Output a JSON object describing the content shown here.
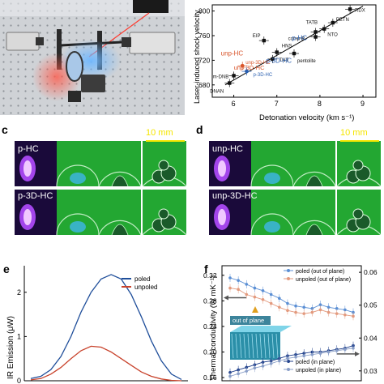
{
  "panel_labels": {
    "c": "c",
    "d": "d",
    "e": "e",
    "f": "f"
  },
  "panel_b": {
    "ylabel": "Laser-induced shock velocity",
    "xlabel": "Detonation velocity (km s⁻¹)",
    "x_ticks": [
      "6",
      "7",
      "8",
      "9"
    ],
    "y_ticks": [
      "680",
      "720",
      "760",
      "800"
    ],
    "labels": {
      "rdx": "RDX",
      "petn": "PETN",
      "tatb": "TATB",
      "nto": "NTO",
      "comp_b": "comp-B",
      "eip": "EIP",
      "hns": "HNS",
      "tnt": "TNT",
      "pentolite": "pentolite",
      "m_dnb": "m-DNB",
      "dnan": "DNAN",
      "p_hc": "p-HC",
      "p_3d_hc": "p-3D-HC",
      "unp_hc": "unp-HC",
      "unp_3d_hc": "unp-3D-HC"
    },
    "colors": {
      "p": "#2a5fb0",
      "unp": "#d9552b",
      "ref": "#111111"
    }
  },
  "chart_data": [
    {
      "type": "scatter",
      "xlabel": "Detonation velocity (km s⁻¹)",
      "ylabel": "Laser-induced shock velocity",
      "xlim": [
        5.5,
        9.3
      ],
      "ylim": [
        660,
        810
      ],
      "series": [
        {
          "values": [
            {
              "x": 5.9,
              "y": 683,
              "label": "DNAN"
            },
            {
              "x": 6.0,
              "y": 695,
              "label": "m-DNB"
            },
            {
              "x": 6.9,
              "y": 722,
              "label": "TNT"
            },
            {
              "x": 7.0,
              "y": 733,
              "label": "HNS"
            },
            {
              "x": 6.7,
              "y": 752,
              "label": "EIP"
            },
            {
              "x": 7.4,
              "y": 731,
              "label": "pentolite"
            },
            {
              "x": 7.9,
              "y": 766,
              "label": "TATB"
            },
            {
              "x": 7.9,
              "y": 758,
              "label": "comp-B"
            },
            {
              "x": 8.1,
              "y": 771,
              "label": "NTO"
            },
            {
              "x": 8.3,
              "y": 781,
              "label": "PETN"
            },
            {
              "x": 8.7,
              "y": 803,
              "label": "RDX"
            },
            {
              "x": 6.3,
              "y": 702,
              "label": "p-3D-HC"
            },
            {
              "x": 6.2,
              "y": 711,
              "label": "unp-3D-HC"
            }
          ]
        }
      ]
    },
    {
      "type": "line",
      "ylabel": "IR Emission (μW)",
      "series": [
        {
          "name": "poled",
          "color": "#1f4e9a",
          "values": [
            0.05,
            0.1,
            0.25,
            0.55,
            1.0,
            1.55,
            2.0,
            2.3,
            2.4,
            2.3,
            1.95,
            1.45,
            0.9,
            0.45,
            0.15,
            0.03
          ]
        },
        {
          "name": "unpoled",
          "color": "#c8422b",
          "values": [
            0.02,
            0.05,
            0.15,
            0.3,
            0.5,
            0.68,
            0.78,
            0.76,
            0.65,
            0.5,
            0.35,
            0.2,
            0.1,
            0.04,
            0.01,
            0.0
          ]
        }
      ]
    },
    {
      "type": "line",
      "ylabel": "Thermal conductivity (W mK⁻¹)",
      "y_ticks_left": [
        "0.16",
        "0.20",
        "0.24",
        "0.28",
        "0.32"
      ],
      "y_ticks_right": [
        "0.03",
        "0.04",
        "0.05",
        "0.06"
      ],
      "series": [
        {
          "name": "poled (out of plane)",
          "color": "#5b8fd4",
          "values": [
            0.316,
            0.312,
            0.306,
            0.3,
            0.296,
            0.29,
            0.284,
            0.276,
            0.272,
            0.27,
            0.268,
            0.274,
            0.27,
            0.268,
            0.266,
            0.262
          ]
        },
        {
          "name": "unpoled (out of plane)",
          "color": "#e39a7e",
          "values": [
            0.3,
            0.298,
            0.29,
            0.286,
            0.282,
            0.276,
            0.27,
            0.265,
            0.262,
            0.26,
            0.262,
            0.266,
            0.262,
            0.26,
            0.258,
            0.256
          ]
        },
        {
          "name": "poled (in plane)",
          "color": "#1f3f8a",
          "values": [
            0.168,
            0.172,
            0.176,
            0.18,
            0.184,
            0.186,
            0.19,
            0.194,
            0.196,
            0.198,
            0.2,
            0.2,
            0.202,
            0.204,
            0.206,
            0.21
          ]
        },
        {
          "name": "unpoled (in plane)",
          "color": "#8a9fc8",
          "values": [
            0.162,
            0.166,
            0.17,
            0.175,
            0.178,
            0.182,
            0.186,
            0.19,
            0.192,
            0.194,
            0.196,
            0.198,
            0.2,
            0.202,
            0.204,
            0.206
          ]
        }
      ]
    }
  ],
  "panel_c": {
    "top_label": "p-HC",
    "bottom_label": "p-3D-HC",
    "scale": "10 mm"
  },
  "panel_d": {
    "top_label": "unp-HC",
    "bottom_label": "unp-3D-HC",
    "scale": "10 mm"
  },
  "panel_e": {
    "ylabel": "IR Emission (μW)",
    "legend": [
      "poled",
      "unpoled"
    ],
    "y_ticks": [
      "0",
      "1",
      "2"
    ]
  },
  "panel_f": {
    "ylabel": "Thermal conductivity (W mK⁻¹)",
    "legend": [
      "poled (out of plane)",
      "unpoled (out of plane)",
      "poled (in plane)",
      "unpoled (in plane)"
    ],
    "inset_label": "out of plane",
    "y_ticks_left": [
      "0.16",
      "0.20",
      "0.24",
      "0.28",
      "0.32"
    ],
    "y_ticks_right": [
      "0.03",
      "0.04",
      "0.05",
      "0.06"
    ]
  }
}
